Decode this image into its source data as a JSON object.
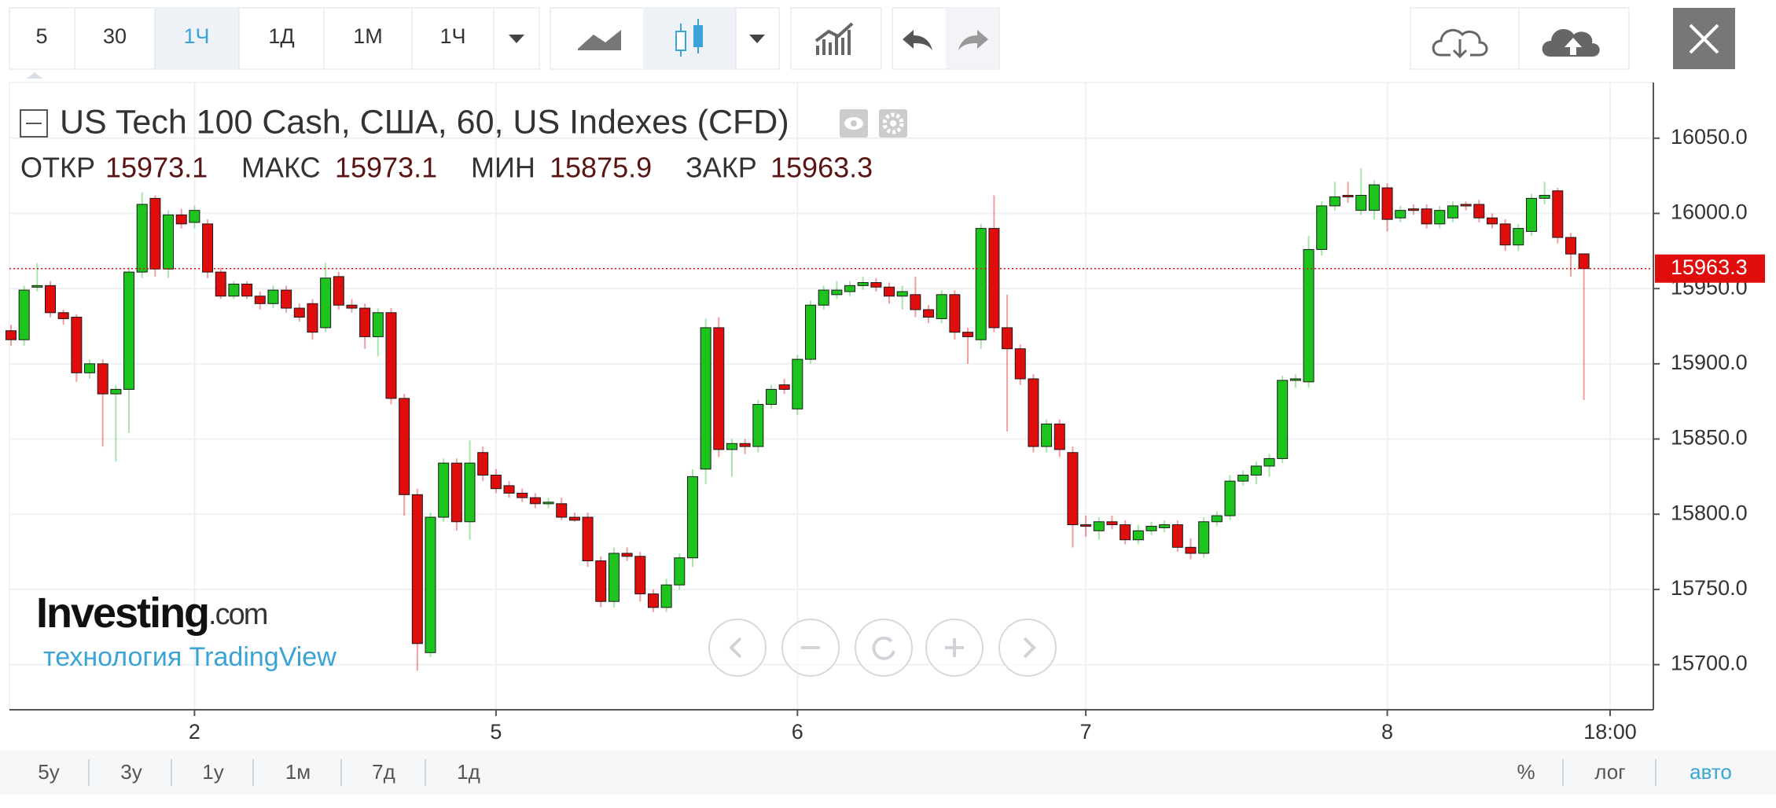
{
  "toolbar": {
    "intervals": [
      "5",
      "30",
      "1Ч",
      "1Д",
      "1М",
      "1Ч"
    ]
  },
  "bottom_bar": {
    "ranges": [
      "5y",
      "3y",
      "1y",
      "1м",
      "7д",
      "1д"
    ],
    "options": [
      "%",
      "лог",
      "авто"
    ]
  },
  "watermark": {
    "brand": "Investing",
    "domain": ".com",
    "credit": "технология TradingView"
  },
  "chart_data": {
    "type": "candlestick",
    "title": "US Tech 100 Cash, США, 60, US Indexes (CFD)",
    "ohlc_labels": [
      "ОТКР",
      "МАКС",
      "МИН",
      "ЗАКР"
    ],
    "up_color": "#1ec41e",
    "down_color": "#e00d0d",
    "categories": [
      null,
      null,
      null,
      null,
      null,
      null,
      null,
      null,
      null,
      null,
      null,
      null,
      null,
      null,
      "2",
      null,
      null,
      null,
      null,
      null,
      null,
      null,
      null,
      null,
      null,
      null,
      null,
      null,
      null,
      null,
      null,
      null,
      null,
      null,
      null,
      null,
      null,
      "5",
      null,
      null,
      null,
      null,
      null,
      null,
      null,
      null,
      null,
      null,
      null,
      null,
      null,
      null,
      null,
      null,
      null,
      null,
      null,
      null,
      null,
      null,
      "6",
      null,
      null,
      null,
      null,
      null,
      null,
      null,
      null,
      null,
      null,
      null,
      null,
      null,
      null,
      null,
      null,
      null,
      null,
      null,
      null,
      null,
      "7",
      null,
      null,
      null,
      null,
      null,
      null,
      null,
      null,
      null,
      null,
      null,
      null,
      null,
      null,
      null,
      null,
      null,
      null,
      null,
      null,
      null,
      null,
      "8",
      null,
      null,
      null,
      null,
      null,
      null,
      null,
      null,
      null,
      null,
      null,
      null,
      null,
      null,
      null,
      null,
      "18:00"
    ],
    "open": [
      15922,
      15916,
      15951,
      15952,
      15934,
      15931,
      15894,
      15900,
      15880,
      15883,
      15961,
      16010,
      15963,
      15999,
      15994,
      15993,
      15961,
      15945,
      15953,
      15945,
      15940,
      15949,
      15937,
      15940,
      15924,
      15958,
      15939,
      15937,
      15918,
      15934,
      15877,
      15813,
      15708,
      15798,
      15834,
      15795,
      15841,
      15826,
      15819,
      15814,
      15811,
      15807,
      15807,
      15798,
      15798,
      15769,
      15742,
      15774,
      15772,
      15747,
      15738,
      15753,
      15771,
      15830,
      15924,
      15843,
      15847,
      15845,
      15873,
      15886,
      15870,
      15903,
      15939,
      15946,
      15948,
      15952,
      15954,
      15951,
      15945,
      15946,
      15936,
      15930,
      15946,
      15921,
      15916,
      15990,
      15924,
      15910,
      15890,
      15845,
      15860,
      15841,
      15793,
      15789,
      15795,
      15793,
      15783,
      15789,
      15791,
      15793,
      15778,
      15774,
      15795,
      15799,
      15822,
      15826,
      15832,
      15837,
      15889,
      15888,
      15976,
      16005,
      16012,
      16002,
      16002,
      16017,
      15997,
      16003,
      16003,
      15993,
      15997,
      16006,
      16006,
      15997,
      15993,
      15979,
      15988,
      16010,
      16015,
      15984,
      15973.1,
      null,
      null
    ],
    "high": [
      15926,
      15952,
      15967,
      15955,
      15936,
      15933,
      15903,
      15903,
      15886,
      15964,
      16014,
      16012,
      16002,
      16003,
      16005,
      15996,
      15964,
      15955,
      15955,
      15948,
      15952,
      15952,
      15940,
      15943,
      15967,
      15961,
      15943,
      15940,
      15937,
      15937,
      15880,
      15817,
      15801,
      15837,
      15837,
      15849,
      15845,
      15830,
      15822,
      15817,
      15814,
      15811,
      15811,
      15801,
      15801,
      15772,
      15778,
      15778,
      15775,
      15750,
      15757,
      15774,
      15830,
      15930,
      15931,
      15850,
      15850,
      15876,
      15886,
      15890,
      15906,
      15942,
      15952,
      15955,
      15955,
      15958,
      15957,
      15954,
      15952,
      15958,
      15939,
      15949,
      15949,
      15924,
      15993,
      16012,
      15946,
      15913,
      15893,
      15863,
      15863,
      15845,
      15799,
      15798,
      15799,
      15796,
      15793,
      15795,
      15796,
      15796,
      15784,
      15798,
      15802,
      15826,
      15829,
      15835,
      15840,
      15892,
      15893,
      15985,
      16008,
      16021,
      16021,
      16030,
      16022,
      16020,
      16005,
      16006,
      16006,
      16005,
      16008,
      16008,
      16009,
      16000,
      15996,
      15993,
      16013,
      16021,
      16017,
      15987,
      15973.1,
      null,
      null
    ],
    "low": [
      15912,
      15912,
      15948,
      15931,
      15926,
      15888,
      15890,
      15845,
      15835,
      15854,
      15957,
      15958,
      15957,
      15990,
      15990,
      15957,
      15943,
      15943,
      15943,
      15936,
      15937,
      15934,
      15928,
      15916,
      15921,
      15936,
      15934,
      15910,
      15905,
      15873,
      15799,
      15696,
      15705,
      15795,
      15789,
      15783,
      15822,
      15814,
      15811,
      15808,
      15804,
      15804,
      15796,
      15795,
      15765,
      15738,
      15738,
      15769,
      15742,
      15735,
      15735,
      15750,
      15765,
      15820,
      15838,
      15825,
      15840,
      15841,
      15870,
      15880,
      15866,
      15900,
      15936,
      15943,
      15945,
      15949,
      15948,
      15940,
      15936,
      15931,
      15927,
      15927,
      15916,
      15900,
      15910,
      15921,
      15855,
      15886,
      15841,
      15841,
      15838,
      15778,
      15785,
      15783,
      15790,
      15780,
      15780,
      15786,
      15788,
      15775,
      15770,
      15771,
      15792,
      15796,
      15819,
      15820,
      15825,
      15834,
      15884,
      15884,
      15972,
      16002,
      16007,
      15999,
      15996,
      15988,
      15994,
      15999,
      15990,
      15990,
      15994,
      16002,
      15994,
      15990,
      15975,
      15975,
      15985,
      16006,
      15980,
      15958,
      15875.9,
      null,
      null
    ],
    "close": [
      15916,
      15949,
      15952,
      15934,
      15930,
      15894,
      15900,
      15880,
      15883,
      15961,
      16006,
      15963,
      15999,
      15993,
      16002,
      15961,
      15945,
      15953,
      15945,
      15940,
      15949,
      15937,
      15931,
      15921,
      15957,
      15939,
      15937,
      15918,
      15934,
      15877,
      15813,
      15714,
      15798,
      15834,
      15795,
      15834,
      15826,
      15817,
      15814,
      15811,
      15807,
      15808,
      15798,
      15796,
      15769,
      15742,
      15774,
      15772,
      15747,
      15738,
      15753,
      15771,
      15825,
      15924,
      15843,
      15847,
      15845,
      15873,
      15883,
      15883,
      15903,
      15939,
      15949,
      15949,
      15952,
      15954,
      15951,
      15945,
      15948,
      15936,
      15931,
      15946,
      15921,
      15918,
      15990,
      15924,
      15910,
      15890,
      15845,
      15860,
      15843,
      15793,
      15792,
      15795,
      15793,
      15783,
      15789,
      15792,
      15793,
      15778,
      15774,
      15795,
      15799,
      15822,
      15826,
      15832,
      15837,
      15889,
      15890,
      15976,
      16005,
      16011,
      16011,
      16012,
      16019,
      15996,
      16002,
      16002,
      15993,
      16002,
      16005,
      16005,
      15997,
      15993,
      15979,
      15990,
      16010,
      16012,
      15984,
      15973,
      15963.3,
      null,
      null
    ],
    "ylim": [
      15670,
      16087
    ],
    "yticks": [
      {
        "value": 15700,
        "label": "15700.0"
      },
      {
        "value": 15750,
        "label": "15750.0"
      },
      {
        "value": 15800,
        "label": "15800.0"
      },
      {
        "value": 15850,
        "label": "15850.0"
      },
      {
        "value": 15900,
        "label": "15900.0"
      },
      {
        "value": 15950,
        "label": "15950.0"
      },
      {
        "value": 16000,
        "label": "16000.0"
      },
      {
        "value": 16050,
        "label": "16050.0"
      }
    ],
    "grid": true
  }
}
